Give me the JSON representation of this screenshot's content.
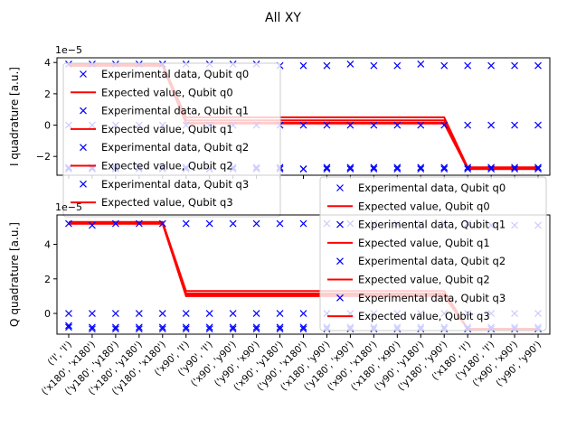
{
  "figure": {
    "suptitle": "All XY"
  },
  "chart_data": [
    {
      "type": "line",
      "title": "",
      "xlabel": "",
      "ylabel": "I quadrature [a.u.]",
      "scale_label": "1e−5",
      "ylim": [
        -3.2,
        4.3
      ],
      "yticks": [
        -2,
        0,
        2,
        4
      ],
      "tick_labels": [
        "−2",
        "0",
        "2",
        "4"
      ],
      "grid": false,
      "legend_placement": "bottom-left",
      "categories": [
        "('I', 'I')",
        "('x180', 'x180')",
        "('y180', 'y180')",
        "('x180', 'y180')",
        "('y180', 'x180')",
        "('x90', 'I')",
        "('y90', 'I')",
        "('x90', 'y90')",
        "('y90', 'x90')",
        "('x90', 'y180')",
        "('y90', 'x180')",
        "('x180', 'y90')",
        "('y180', 'x90')",
        "('x90', 'x180')",
        "('x180', 'x90')",
        "('y90', 'y180')",
        "('y180', 'y90')",
        "('x180', 'I')",
        "('y180', 'I')",
        "('x90', 'x90')",
        "('y90', 'y90')"
      ],
      "legend": [
        "Experimental data, Qubit q0",
        "Expected value, Qubit q0",
        "Experimental data, Qubit q1",
        "Expected value, Qubit q1",
        "Experimental data, Qubit q2",
        "Expected value, Qubit q2",
        "Experimental data, Qubit q3",
        "Expected value, Qubit q3"
      ],
      "series": [
        {
          "kind": "data",
          "values": [
            3.9,
            3.9,
            3.9,
            3.9,
            3.9,
            3.9,
            3.9,
            3.9,
            3.9,
            3.8,
            3.8,
            3.8,
            3.9,
            3.8,
            3.8,
            3.9,
            3.8,
            3.8,
            3.8,
            3.8,
            3.8
          ]
        },
        {
          "kind": "expected",
          "values": [
            3.9,
            3.9,
            3.9,
            3.9,
            3.9,
            0.5,
            0.5,
            0.5,
            0.5,
            0.5,
            0.5,
            0.5,
            0.5,
            0.5,
            0.5,
            0.5,
            0.5,
            -2.7,
            -2.7,
            -2.7,
            -2.7
          ]
        },
        {
          "kind": "data",
          "values": [
            0.0,
            0.0,
            0.0,
            0.0,
            0.0,
            0.0,
            0.0,
            0.0,
            0.0,
            0.0,
            0.0,
            0.0,
            0.0,
            0.0,
            0.0,
            0.0,
            0.0,
            0.0,
            0.0,
            0.0,
            0.0
          ]
        },
        {
          "kind": "expected",
          "values": [
            3.85,
            3.85,
            3.85,
            3.85,
            3.85,
            0.3,
            0.3,
            0.3,
            0.3,
            0.3,
            0.3,
            0.3,
            0.3,
            0.3,
            0.3,
            0.3,
            0.3,
            -2.75,
            -2.75,
            -2.75,
            -2.75
          ]
        },
        {
          "kind": "data",
          "values": [
            -2.7,
            -2.7,
            -2.7,
            -2.7,
            -2.7,
            -2.7,
            -2.8,
            -2.7,
            -2.7,
            -2.7,
            -2.8,
            -2.7,
            -2.7,
            -2.7,
            -2.7,
            -2.7,
            -2.7,
            -2.7,
            -2.7,
            -2.7,
            -2.7
          ]
        },
        {
          "kind": "expected",
          "values": [
            3.8,
            3.8,
            3.8,
            3.8,
            3.8,
            0.15,
            0.15,
            0.15,
            0.15,
            0.15,
            0.15,
            0.15,
            0.15,
            0.15,
            0.15,
            0.15,
            0.15,
            -2.8,
            -2.8,
            -2.8,
            -2.8
          ]
        },
        {
          "kind": "data",
          "values": [
            -2.8,
            -2.8,
            -2.8,
            -2.8,
            -2.8,
            -2.8,
            -2.8,
            -2.8,
            -2.8,
            -2.8,
            -2.8,
            -2.8,
            -2.8,
            -2.8,
            -2.8,
            -2.8,
            -2.8,
            -2.8,
            -2.8,
            -2.8,
            -2.8
          ]
        },
        {
          "kind": "expected",
          "values": [
            3.8,
            3.8,
            3.8,
            3.8,
            3.8,
            0.1,
            0.1,
            0.1,
            0.1,
            0.1,
            0.1,
            0.1,
            0.1,
            0.1,
            0.1,
            0.1,
            0.1,
            -2.8,
            -2.8,
            -2.8,
            -2.8
          ]
        }
      ]
    },
    {
      "type": "line",
      "title": "",
      "xlabel": "",
      "ylabel": "Q quadrature [a.u.]",
      "scale_label": "1e−5",
      "ylim": [
        -1.2,
        5.7
      ],
      "yticks": [
        0,
        2,
        4
      ],
      "tick_labels": [
        "0",
        "2",
        "4"
      ],
      "grid": false,
      "legend_placement": "right",
      "categories": [
        "('I', 'I')",
        "('x180', 'x180')",
        "('y180', 'y180')",
        "('x180', 'y180')",
        "('y180', 'x180')",
        "('x90', 'I')",
        "('y90', 'I')",
        "('x90', 'y90')",
        "('y90', 'x90')",
        "('x90', 'y180')",
        "('y90', 'x180')",
        "('x180', 'y90')",
        "('y180', 'x90')",
        "('x90', 'x180')",
        "('x180', 'x90')",
        "('y90', 'y180')",
        "('y180', 'y90')",
        "('x180', 'I')",
        "('y180', 'I')",
        "('x90', 'x90')",
        "('y90', 'y90')"
      ],
      "legend": [
        "Experimental data, Qubit q0",
        "Expected value, Qubit q0",
        "Experimental data, Qubit q1",
        "Expected value, Qubit q1",
        "Experimental data, Qubit q2",
        "Expected value, Qubit q2",
        "Experimental data, Qubit q3",
        "Expected value, Qubit q3"
      ],
      "series": [
        {
          "kind": "data",
          "values": [
            5.2,
            5.1,
            5.2,
            5.2,
            5.2,
            5.2,
            5.2,
            5.2,
            5.2,
            5.2,
            5.2,
            5.2,
            5.2,
            5.2,
            5.2,
            5.2,
            5.2,
            5.2,
            5.1,
            5.1,
            5.1
          ]
        },
        {
          "kind": "expected",
          "values": [
            5.3,
            5.3,
            5.3,
            5.3,
            5.3,
            1.3,
            1.3,
            1.3,
            1.3,
            1.3,
            1.3,
            1.3,
            1.3,
            1.3,
            1.3,
            1.3,
            1.3,
            -0.9,
            -0.9,
            -0.9,
            -0.9
          ]
        },
        {
          "kind": "data",
          "values": [
            0.0,
            0.0,
            0.0,
            0.0,
            0.0,
            0.0,
            0.0,
            0.0,
            0.0,
            0.0,
            0.0,
            0.0,
            0.0,
            0.0,
            0.0,
            0.0,
            0.0,
            0.0,
            0.0,
            0.0,
            0.0
          ]
        },
        {
          "kind": "expected",
          "values": [
            5.2,
            5.2,
            5.2,
            5.2,
            5.2,
            1.15,
            1.15,
            1.15,
            1.15,
            1.15,
            1.15,
            1.15,
            1.15,
            1.15,
            1.15,
            1.15,
            1.15,
            -0.9,
            -0.9,
            -0.9,
            -0.9
          ]
        },
        {
          "kind": "data",
          "values": [
            -0.7,
            -0.8,
            -0.8,
            -0.8,
            -0.8,
            -0.8,
            -0.8,
            -0.8,
            -0.8,
            -0.8,
            -0.8,
            -0.8,
            -0.8,
            -0.8,
            -0.8,
            -0.8,
            -0.8,
            -0.8,
            -0.8,
            -0.8,
            -0.8
          ]
        },
        {
          "kind": "expected",
          "values": [
            5.2,
            5.2,
            5.2,
            5.2,
            5.2,
            1.05,
            1.05,
            1.05,
            1.05,
            1.05,
            1.05,
            1.05,
            1.05,
            1.05,
            1.05,
            1.05,
            1.05,
            -0.9,
            -0.9,
            -0.9,
            -0.9
          ]
        },
        {
          "kind": "data",
          "values": [
            -0.8,
            -0.9,
            -0.9,
            -0.9,
            -0.9,
            -0.9,
            -0.9,
            -0.9,
            -0.9,
            -0.9,
            -0.9,
            -0.9,
            -0.9,
            -0.9,
            -0.9,
            -0.9,
            -0.9,
            -0.9,
            -0.9,
            -0.9,
            -0.9
          ]
        },
        {
          "kind": "expected",
          "values": [
            5.2,
            5.2,
            5.2,
            5.2,
            5.2,
            1.0,
            1.0,
            1.0,
            1.0,
            1.0,
            1.0,
            1.0,
            1.0,
            1.0,
            1.0,
            1.0,
            1.0,
            -0.9,
            -0.9,
            -0.9,
            -0.9
          ]
        }
      ]
    }
  ],
  "colors": {
    "data": "#0000ff",
    "expected": "#ff0000",
    "axis": "#000000"
  }
}
